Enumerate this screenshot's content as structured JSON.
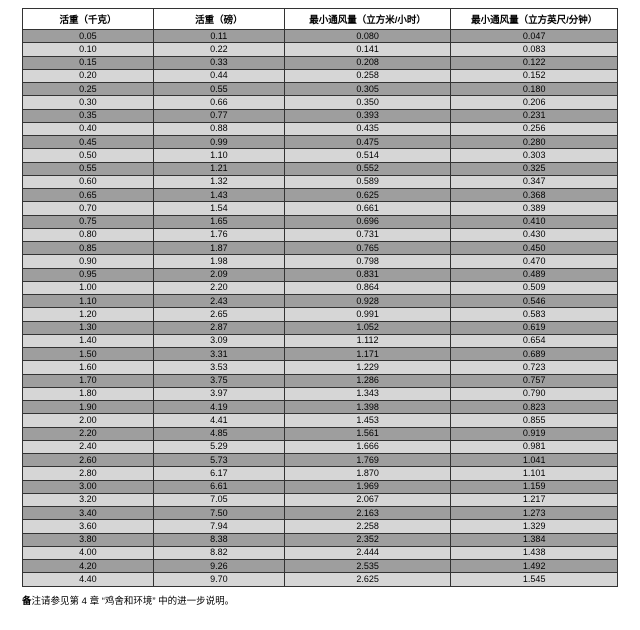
{
  "table": {
    "columns": [
      "活重（千克）",
      "活重（磅）",
      "最小通风量（立方米/小时）",
      "最小通风量（立方英尺/分钟）"
    ],
    "col_widths": [
      "22%",
      "22%",
      "28%",
      "28%"
    ],
    "header_bg": "#ffffff",
    "row_bg_odd": "#9e9e9e",
    "row_bg_even": "#d6d6d6",
    "border_color": "#333333",
    "header_fontsize": 9.5,
    "cell_fontsize": 9,
    "rows": [
      [
        "0.05",
        "0.11",
        "0.080",
        "0.047"
      ],
      [
        "0.10",
        "0.22",
        "0.141",
        "0.083"
      ],
      [
        "0.15",
        "0.33",
        "0.208",
        "0.122"
      ],
      [
        "0.20",
        "0.44",
        "0.258",
        "0.152"
      ],
      [
        "0.25",
        "0.55",
        "0.305",
        "0.180"
      ],
      [
        "0.30",
        "0.66",
        "0.350",
        "0.206"
      ],
      [
        "0.35",
        "0.77",
        "0.393",
        "0.231"
      ],
      [
        "0.40",
        "0.88",
        "0.435",
        "0.256"
      ],
      [
        "0.45",
        "0.99",
        "0.475",
        "0.280"
      ],
      [
        "0.50",
        "1.10",
        "0.514",
        "0.303"
      ],
      [
        "0.55",
        "1.21",
        "0.552",
        "0.325"
      ],
      [
        "0.60",
        "1.32",
        "0.589",
        "0.347"
      ],
      [
        "0.65",
        "1.43",
        "0.625",
        "0.368"
      ],
      [
        "0.70",
        "1.54",
        "0.661",
        "0.389"
      ],
      [
        "0.75",
        "1.65",
        "0.696",
        "0.410"
      ],
      [
        "0.80",
        "1.76",
        "0.731",
        "0.430"
      ],
      [
        "0.85",
        "1.87",
        "0.765",
        "0.450"
      ],
      [
        "0.90",
        "1.98",
        "0.798",
        "0.470"
      ],
      [
        "0.95",
        "2.09",
        "0.831",
        "0.489"
      ],
      [
        "1.00",
        "2.20",
        "0.864",
        "0.509"
      ],
      [
        "1.10",
        "2.43",
        "0.928",
        "0.546"
      ],
      [
        "1.20",
        "2.65",
        "0.991",
        "0.583"
      ],
      [
        "1.30",
        "2.87",
        "1.052",
        "0.619"
      ],
      [
        "1.40",
        "3.09",
        "1.112",
        "0.654"
      ],
      [
        "1.50",
        "3.31",
        "1.171",
        "0.689"
      ],
      [
        "1.60",
        "3.53",
        "1.229",
        "0.723"
      ],
      [
        "1.70",
        "3.75",
        "1.286",
        "0.757"
      ],
      [
        "1.80",
        "3.97",
        "1.343",
        "0.790"
      ],
      [
        "1.90",
        "4.19",
        "1.398",
        "0.823"
      ],
      [
        "2.00",
        "4.41",
        "1.453",
        "0.855"
      ],
      [
        "2.20",
        "4.85",
        "1.561",
        "0.919"
      ],
      [
        "2.40",
        "5.29",
        "1.666",
        "0.981"
      ],
      [
        "2.60",
        "5.73",
        "1.769",
        "1.041"
      ],
      [
        "2.80",
        "6.17",
        "1.870",
        "1.101"
      ],
      [
        "3.00",
        "6.61",
        "1.969",
        "1.159"
      ],
      [
        "3.20",
        "7.05",
        "2.067",
        "1.217"
      ],
      [
        "3.40",
        "7.50",
        "2.163",
        "1.273"
      ],
      [
        "3.60",
        "7.94",
        "2.258",
        "1.329"
      ],
      [
        "3.80",
        "8.38",
        "2.352",
        "1.384"
      ],
      [
        "4.00",
        "8.82",
        "2.444",
        "1.438"
      ],
      [
        "4.20",
        "9.26",
        "2.535",
        "1.492"
      ],
      [
        "4.40",
        "9.70",
        "2.625",
        "1.545"
      ]
    ]
  },
  "footnote": {
    "bold_prefix": "备",
    "text": "注请参见第 4 章 “鸡舍和环境” 中的进一步说明。"
  }
}
